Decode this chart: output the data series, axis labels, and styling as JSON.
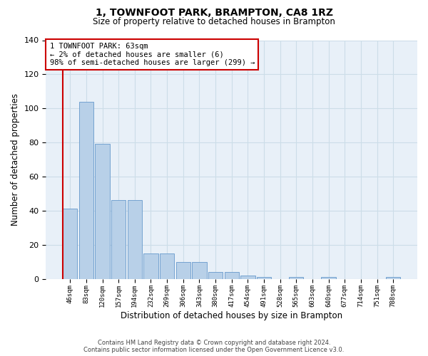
{
  "title": "1, TOWNFOOT PARK, BRAMPTON, CA8 1RZ",
  "subtitle": "Size of property relative to detached houses in Brampton",
  "xlabel": "Distribution of detached houses by size in Brampton",
  "ylabel": "Number of detached properties",
  "footer_line1": "Contains HM Land Registry data © Crown copyright and database right 2024.",
  "footer_line2": "Contains public sector information licensed under the Open Government Licence v3.0.",
  "bin_labels": [
    "46sqm",
    "83sqm",
    "120sqm",
    "157sqm",
    "194sqm",
    "232sqm",
    "269sqm",
    "306sqm",
    "343sqm",
    "380sqm",
    "417sqm",
    "454sqm",
    "491sqm",
    "528sqm",
    "565sqm",
    "603sqm",
    "640sqm",
    "677sqm",
    "714sqm",
    "751sqm",
    "788sqm"
  ],
  "bar_heights": [
    41,
    104,
    79,
    46,
    46,
    15,
    15,
    10,
    10,
    4,
    4,
    2,
    1,
    0,
    1,
    0,
    1,
    0,
    0,
    0,
    1
  ],
  "bar_color": "#b8d0e8",
  "bar_edge_color": "#6699cc",
  "grid_color": "#ccdde8",
  "axes_background": "#e8f0f8",
  "annotation_text": "1 TOWNFOOT PARK: 63sqm\n← 2% of detached houses are smaller (6)\n98% of semi-detached houses are larger (299) →",
  "ylim": [
    0,
    140
  ],
  "yticks": [
    0,
    20,
    40,
    60,
    80,
    100,
    120,
    140
  ],
  "red_color": "#cc0000",
  "title_fontsize": 10,
  "subtitle_fontsize": 8.5
}
